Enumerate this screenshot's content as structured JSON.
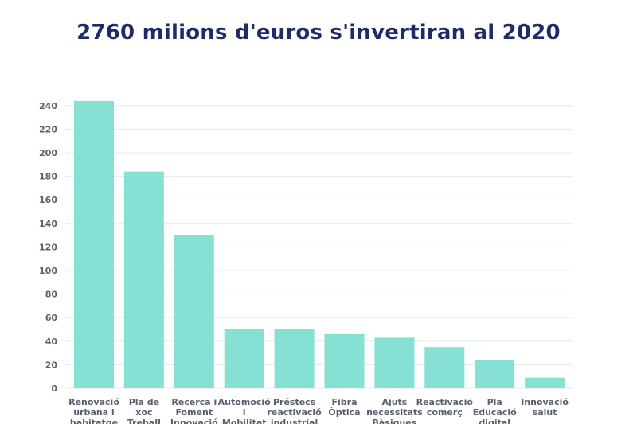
{
  "chart_data": {
    "type": "bar",
    "title": "2760 milions d'euros s'invertiran al 2020",
    "xlabel": "",
    "ylabel": "",
    "ylim": [
      0,
      250
    ],
    "yticks": [
      0,
      20,
      40,
      60,
      80,
      100,
      120,
      140,
      160,
      180,
      200,
      220,
      240
    ],
    "grid": true,
    "bar_color": "#86e0d4",
    "categories": [
      "Renovació urbana i habitatge",
      "Pla de xoc Treball",
      "Recerca i Foment Innovació",
      "Automoció i Mobilitat",
      "Préstecs reactivació industrial",
      "Fibra Òptica",
      "Ajuts necessitats Bàsiques",
      "Reactivació comerç",
      "Pla Educació digital",
      "Innovació salut"
    ],
    "category_lines": [
      [
        "Renovació",
        "urbana i",
        "habitatge"
      ],
      [
        "Pla de",
        "xoc",
        "Treball"
      ],
      [
        "Recerca i",
        "Foment",
        "Innovació"
      ],
      [
        "Automoció",
        "i",
        "Mobilitat"
      ],
      [
        "Préstecs",
        "reactivació",
        "industrial"
      ],
      [
        "Fibra",
        "Òptica"
      ],
      [
        "Ajuts",
        "necessitats",
        "Bàsiques"
      ],
      [
        "Reactivació",
        "comerç"
      ],
      [
        "Pla",
        "Educació",
        "digital"
      ],
      [
        "Innovació",
        "salut"
      ]
    ],
    "values": [
      244,
      184,
      130,
      50,
      50,
      46,
      43,
      35,
      24,
      9
    ]
  }
}
